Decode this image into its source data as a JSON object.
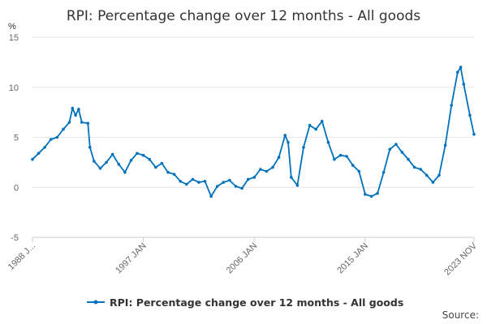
{
  "chart_data": {
    "type": "line",
    "title": "RPI: Percentage change over 12 months - All goods",
    "ylabel": "%",
    "xlabel": "",
    "ylim": [
      -5,
      15
    ],
    "y_ticks": [
      15,
      10,
      5,
      0,
      -5
    ],
    "xlim": [
      "1988 JAN",
      "2023 NOV"
    ],
    "x_tick_labels": [
      "1988 J...",
      "1997 JAN",
      "2006 JAN",
      "2015 JAN",
      "2023 NOV"
    ],
    "grid": "horizontal",
    "legend_position": "bottom",
    "series": [
      {
        "name": "RPI: Percentage change over 12 months - All goods",
        "color": "#0072bc",
        "marker": "circle",
        "points": [
          [
            "1988 JAN",
            2.8
          ],
          [
            "1988 JUL",
            3.4
          ],
          [
            "1989 JAN",
            4.0
          ],
          [
            "1989 JUL",
            4.8
          ],
          [
            "1990 JAN",
            5.0
          ],
          [
            "1990 JUL",
            5.8
          ],
          [
            "1991 JAN",
            6.5
          ],
          [
            "1991 APR",
            7.9
          ],
          [
            "1991 JUL",
            7.2
          ],
          [
            "1991 OCT",
            7.8
          ],
          [
            "1992 JAN",
            6.5
          ],
          [
            "1992 JUL",
            6.4
          ],
          [
            "1992 SEP",
            4.0
          ],
          [
            "1993 JAN",
            2.6
          ],
          [
            "1993 JUL",
            1.9
          ],
          [
            "1994 JAN",
            2.5
          ],
          [
            "1994 JUL",
            3.3
          ],
          [
            "1995 JAN",
            2.3
          ],
          [
            "1995 JUL",
            1.5
          ],
          [
            "1996 JAN",
            2.7
          ],
          [
            "1996 JUL",
            3.4
          ],
          [
            "1997 JAN",
            3.2
          ],
          [
            "1997 JUL",
            2.8
          ],
          [
            "1998 JAN",
            2.0
          ],
          [
            "1998 JUL",
            2.4
          ],
          [
            "1999 JAN",
            1.5
          ],
          [
            "1999 JUL",
            1.3
          ],
          [
            "2000 JAN",
            0.6
          ],
          [
            "2000 JUL",
            0.3
          ],
          [
            "2001 JAN",
            0.8
          ],
          [
            "2001 JUL",
            0.5
          ],
          [
            "2002 JAN",
            0.6
          ],
          [
            "2002 JUL",
            -0.9
          ],
          [
            "2003 JAN",
            0.1
          ],
          [
            "2003 JUL",
            0.5
          ],
          [
            "2004 JAN",
            0.7
          ],
          [
            "2004 JUL",
            0.1
          ],
          [
            "2005 JAN",
            -0.1
          ],
          [
            "2005 JUL",
            0.8
          ],
          [
            "2006 JAN",
            1.0
          ],
          [
            "2006 JUL",
            1.8
          ],
          [
            "2007 JAN",
            1.6
          ],
          [
            "2007 JUL",
            2.0
          ],
          [
            "2008 JAN",
            3.0
          ],
          [
            "2008 JUL",
            5.2
          ],
          [
            "2008 OCT",
            4.5
          ],
          [
            "2009 JAN",
            1.0
          ],
          [
            "2009 JUL",
            0.2
          ],
          [
            "2010 JAN",
            4.0
          ],
          [
            "2010 JUL",
            6.2
          ],
          [
            "2011 JAN",
            5.8
          ],
          [
            "2011 JUL",
            6.6
          ],
          [
            "2012 JAN",
            4.5
          ],
          [
            "2012 JUL",
            2.8
          ],
          [
            "2013 JAN",
            3.2
          ],
          [
            "2013 JUL",
            3.1
          ],
          [
            "2014 JAN",
            2.2
          ],
          [
            "2014 JUL",
            1.6
          ],
          [
            "2015 JAN",
            -0.7
          ],
          [
            "2015 JUL",
            -0.9
          ],
          [
            "2016 JAN",
            -0.6
          ],
          [
            "2016 JUL",
            1.5
          ],
          [
            "2017 JAN",
            3.8
          ],
          [
            "2017 JUL",
            4.3
          ],
          [
            "2018 JAN",
            3.5
          ],
          [
            "2018 JUL",
            2.8
          ],
          [
            "2019 JAN",
            2.0
          ],
          [
            "2019 JUL",
            1.8
          ],
          [
            "2020 JAN",
            1.2
          ],
          [
            "2020 JUL",
            0.5
          ],
          [
            "2021 JAN",
            1.2
          ],
          [
            "2021 JUL",
            4.2
          ],
          [
            "2022 JAN",
            8.2
          ],
          [
            "2022 JUL",
            11.5
          ],
          [
            "2022 OCT",
            12.0
          ],
          [
            "2023 JAN",
            10.3
          ],
          [
            "2023 JUL",
            7.2
          ],
          [
            "2023 NOV",
            5.3
          ]
        ]
      }
    ],
    "source_label": "Source:"
  }
}
